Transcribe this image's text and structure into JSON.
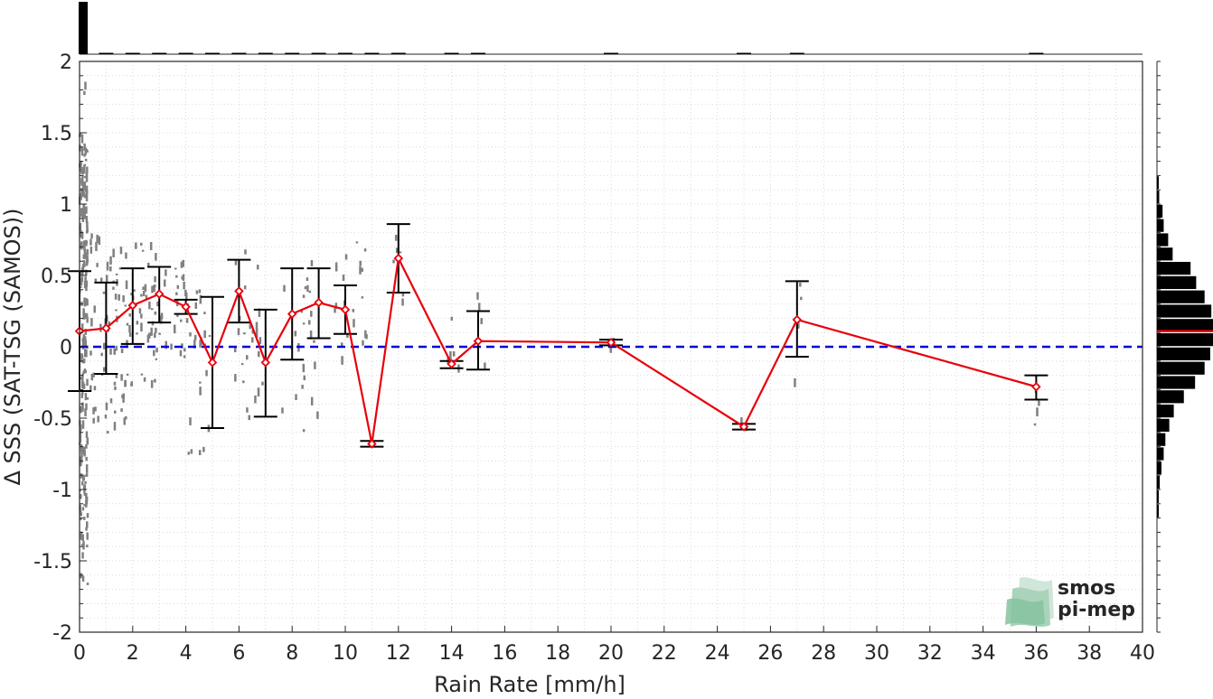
{
  "chart_data": {
    "type": "line",
    "xlabel": "Rain Rate [mm/h]",
    "ylabel": "Δ SSS (SAT-TSG (SAMOS))",
    "xlim": [
      0,
      40
    ],
    "ylim": [
      -2,
      2
    ],
    "x_ticks": [
      0,
      2,
      4,
      6,
      8,
      10,
      12,
      14,
      16,
      18,
      20,
      22,
      24,
      26,
      28,
      30,
      32,
      34,
      36,
      38,
      40
    ],
    "y_ticks": [
      -2,
      -1.5,
      -1,
      -0.5,
      0,
      0.5,
      1,
      1.5,
      2
    ],
    "y_tick_labels": [
      "-2",
      "-1.5",
      "-1",
      "-0.5",
      "0",
      "0.5",
      "1",
      "1.5",
      "2"
    ],
    "grid": true,
    "zero_line": {
      "y": 0,
      "color": "#0000dd",
      "style": "dashed"
    },
    "series": [
      {
        "color": "#e8000b",
        "marker": "diamond",
        "x": [
          0,
          1,
          2,
          3,
          4,
          5,
          6,
          7,
          8,
          9,
          10,
          11,
          12,
          14,
          15,
          20,
          25,
          27,
          36
        ],
        "mean": [
          0.11,
          0.13,
          0.29,
          0.37,
          0.28,
          -0.11,
          0.39,
          -0.11,
          0.23,
          0.31,
          0.26,
          -0.68,
          0.62,
          -0.12,
          0.04,
          0.03,
          -0.56,
          0.19,
          -0.28
        ],
        "err_low": [
          -0.31,
          -0.19,
          0.02,
          0.17,
          0.23,
          -0.57,
          0.17,
          -0.49,
          -0.09,
          0.06,
          0.09,
          -0.7,
          0.38,
          -0.15,
          -0.16,
          0.01,
          -0.58,
          -0.07,
          -0.37
        ],
        "err_high": [
          0.53,
          0.45,
          0.55,
          0.56,
          0.33,
          0.35,
          0.61,
          0.26,
          0.55,
          0.55,
          0.43,
          -0.66,
          0.86,
          -0.1,
          0.25,
          0.05,
          -0.54,
          0.46,
          -0.2
        ]
      }
    ],
    "scatter_color": "#808080",
    "top_histogram": {
      "x": [
        0,
        1,
        2,
        3,
        4,
        5,
        6,
        7,
        8,
        9,
        10,
        11,
        12,
        14,
        15,
        20,
        25,
        27,
        36
      ],
      "relative_count": [
        1.0,
        0.015,
        0.012,
        0.01,
        0.008,
        0.006,
        0.006,
        0.005,
        0.005,
        0.005,
        0.005,
        0.004,
        0.004,
        0.004,
        0.004,
        0.003,
        0.003,
        0.003,
        0.003
      ]
    },
    "right_histogram": {
      "bins": [
        -1.15,
        -1.05,
        -0.95,
        -0.85,
        -0.75,
        -0.65,
        -0.55,
        -0.45,
        -0.35,
        -0.25,
        -0.15,
        -0.05,
        0.05,
        0.15,
        0.25,
        0.35,
        0.45,
        0.55,
        0.65,
        0.75,
        0.85,
        0.95,
        1.05,
        1.15
      ],
      "relative_count": [
        0.02,
        0.03,
        0.05,
        0.08,
        0.12,
        0.15,
        0.22,
        0.3,
        0.48,
        0.68,
        0.85,
        0.95,
        1.0,
        1.0,
        0.97,
        0.85,
        0.7,
        0.6,
        0.28,
        0.2,
        0.12,
        0.1,
        0.04,
        0.02
      ],
      "median_line": {
        "y": 0.11,
        "color": "#e8000b"
      }
    },
    "logo": {
      "line1": "smos",
      "line2": "pi-mep",
      "color": "#7fb89a"
    }
  }
}
